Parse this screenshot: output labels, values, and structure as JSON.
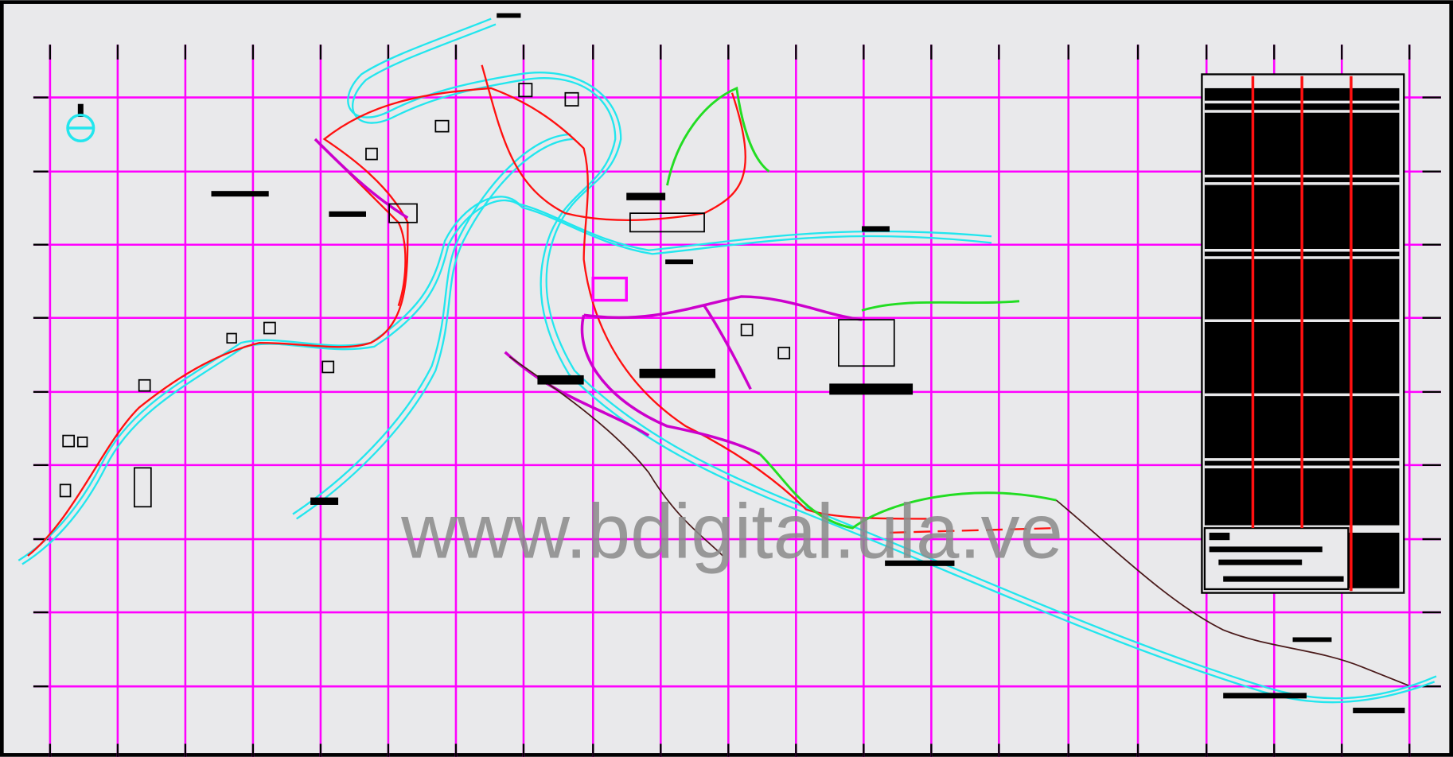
{
  "watermark": "www.bdigital.ula.ve"
}
